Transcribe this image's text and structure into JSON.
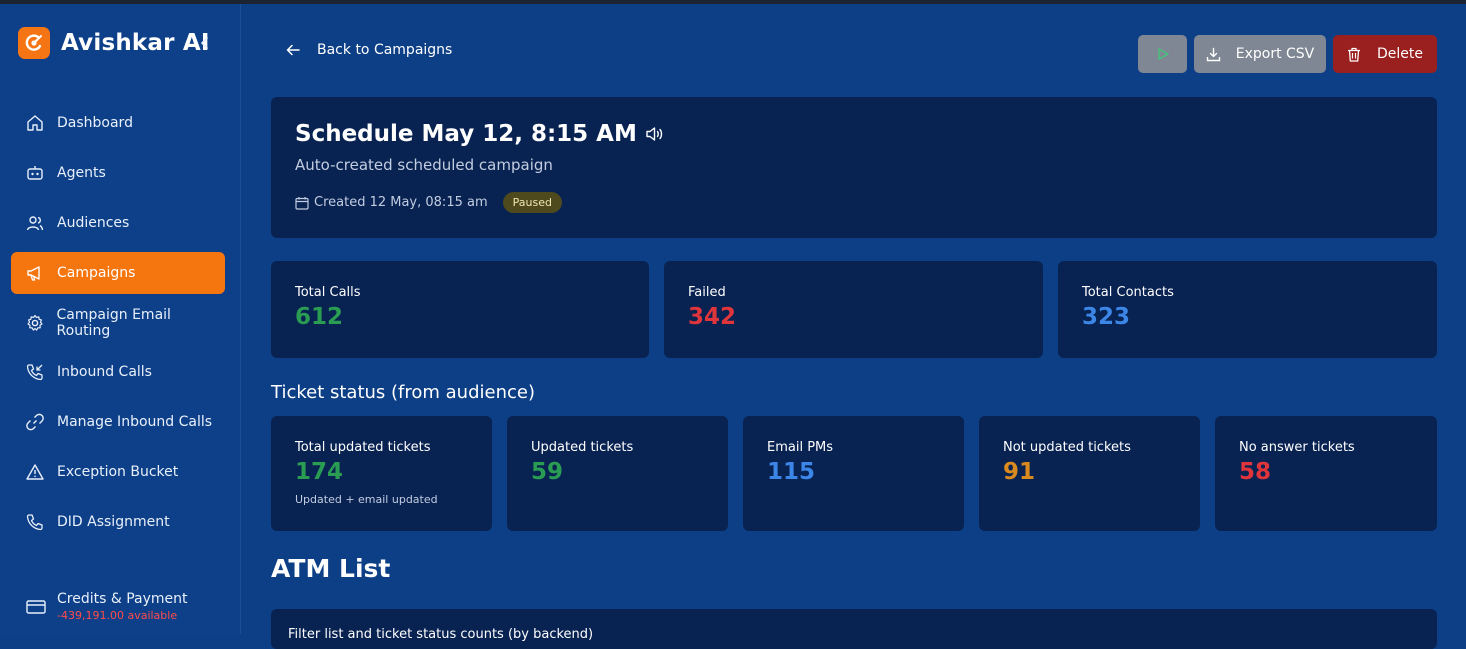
{
  "app": {
    "name": "Avishkar AI"
  },
  "sidebar": {
    "items": [
      {
        "label": "Dashboard",
        "icon": "home-icon"
      },
      {
        "label": "Agents",
        "icon": "robot-icon"
      },
      {
        "label": "Audiences",
        "icon": "users-icon"
      },
      {
        "label": "Campaigns",
        "icon": "megaphone-icon",
        "active": true
      },
      {
        "label": "Campaign Email Routing",
        "icon": "gear-icon"
      },
      {
        "label": "Inbound Calls",
        "icon": "phone-incoming-icon"
      },
      {
        "label": "Manage Inbound Calls",
        "icon": "link-icon"
      },
      {
        "label": "Exception Bucket",
        "icon": "warning-icon"
      },
      {
        "label": "DID Assignment",
        "icon": "phone-icon"
      }
    ],
    "credits": {
      "title": "Credits & Payment",
      "balance": "-439,191.00 available"
    }
  },
  "header": {
    "back_label": "Back to Campaigns",
    "export_label": "Export CSV",
    "delete_label": "Delete"
  },
  "campaign": {
    "title": "Schedule May 12, 8:15 AM",
    "description": "Auto-created scheduled campaign",
    "created": "Created 12 May, 08:15 am",
    "status": "Paused"
  },
  "stats": [
    {
      "label": "Total Calls",
      "value": "612"
    },
    {
      "label": "Failed",
      "value": "342"
    },
    {
      "label": "Total Contacts",
      "value": "323"
    }
  ],
  "ticket_section": {
    "title": "Ticket status (from audience)",
    "cards": [
      {
        "label": "Total updated tickets",
        "value": "174",
        "sub": "Updated + email updated"
      },
      {
        "label": "Updated tickets",
        "value": "59"
      },
      {
        "label": "Email PMs",
        "value": "115"
      },
      {
        "label": "Not updated tickets",
        "value": "91"
      },
      {
        "label": "No answer tickets",
        "value": "58"
      }
    ]
  },
  "atm": {
    "title": "ATM List",
    "filter_label": "Filter list and ticket status counts (by backend)"
  },
  "colors": {
    "accent": "#f5750f",
    "background": "#0d3f86",
    "card": "#082252",
    "green": "#2a9d52",
    "red": "#e0353b",
    "blue": "#3c86e8",
    "orange": "#d98a1f"
  }
}
